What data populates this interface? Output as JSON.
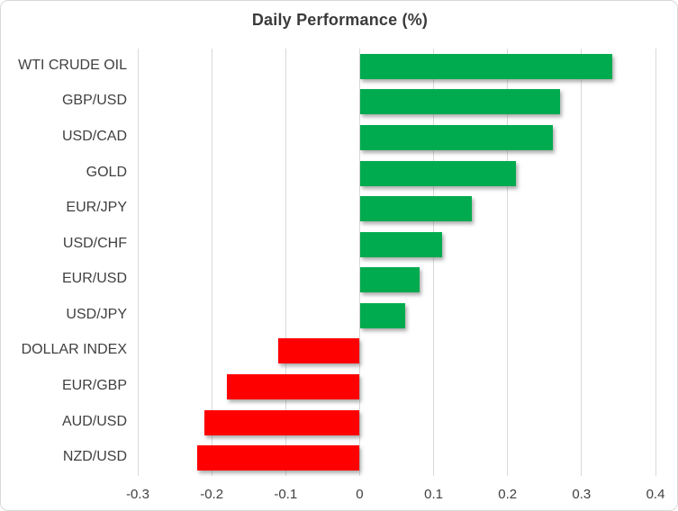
{
  "title": "Daily Performance (%)",
  "chart_data": {
    "type": "bar",
    "orientation": "horizontal",
    "title": "Daily Performance (%)",
    "categories": [
      "WTI CRUDE OIL",
      "GBP/USD",
      "USD/CAD",
      "GOLD",
      "EUR/JPY",
      "USD/CHF",
      "EUR/USD",
      "USD/JPY",
      "DOLLAR INDEX",
      "EUR/GBP",
      "AUD/USD",
      "NZD/USD"
    ],
    "values": [
      0.34,
      0.27,
      0.26,
      0.21,
      0.15,
      0.11,
      0.08,
      0.06,
      -0.11,
      -0.18,
      -0.21,
      -0.22
    ],
    "xlabel": "",
    "ylabel": "",
    "xlim": [
      -0.3,
      0.4
    ],
    "xticks": [
      -0.3,
      -0.2,
      -0.1,
      0,
      0.1,
      0.2,
      0.3,
      0.4
    ],
    "xtick_labels": [
      "-0.3",
      "-0.2",
      "-0.1",
      "0",
      "0.1",
      "0.2",
      "0.3",
      "0.4"
    ],
    "grid": "vertical",
    "legend_position": "none"
  },
  "colors": {
    "positive_bar": "#00AB4F",
    "negative_bar": "#FF0000",
    "gridline": "#D9D9D9",
    "frame_border": "#D9D9D9",
    "title_text": "#3B3B3B",
    "label_text": "#404040",
    "background": "#FFFFFF"
  }
}
